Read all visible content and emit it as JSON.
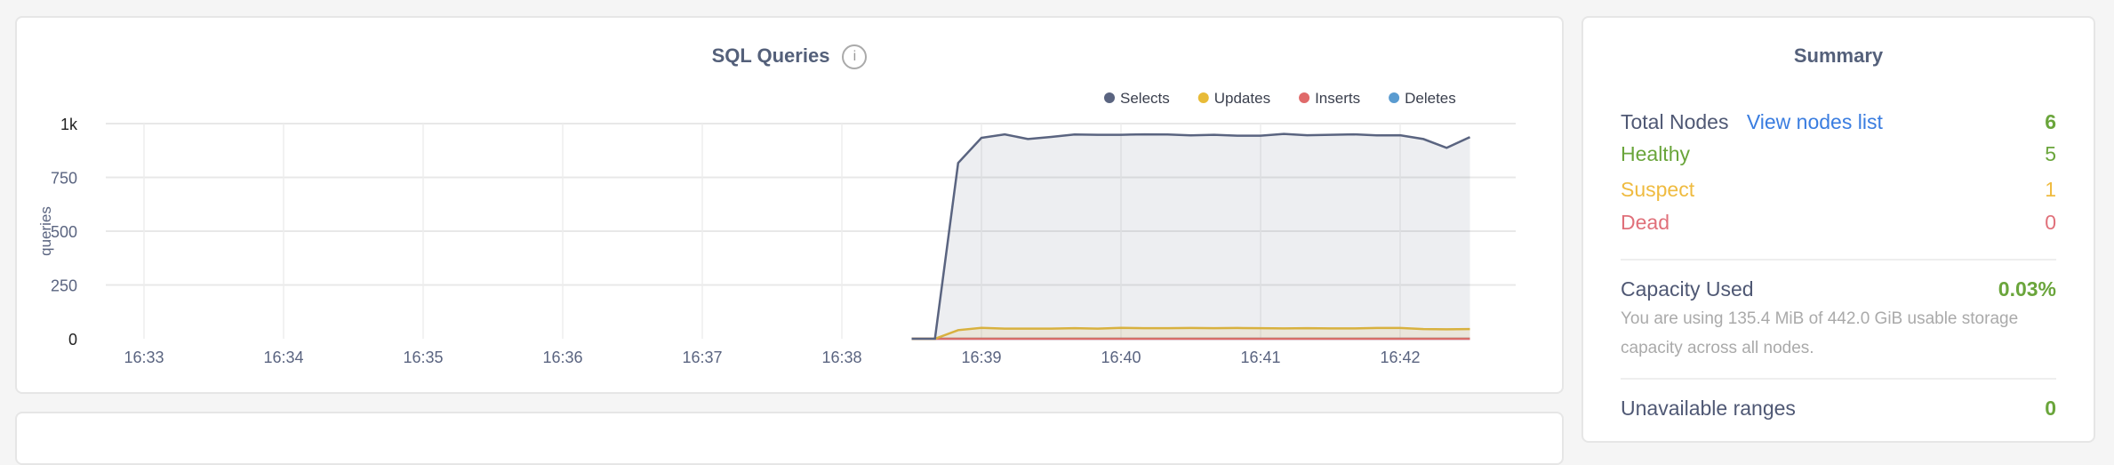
{
  "chart_data": {
    "type": "area",
    "title": "SQL Queries",
    "info_icon": "info-circle-icon",
    "ylabel": "queries",
    "xlabel": "",
    "ylim": [
      0,
      1000
    ],
    "yticks": [
      "0",
      "250",
      "500",
      "750",
      "1k"
    ],
    "ytick_values": [
      0,
      250,
      500,
      750,
      1000
    ],
    "xticks": [
      "16:33",
      "16:34",
      "16:35",
      "16:36",
      "16:37",
      "16:38",
      "16:39",
      "16:40",
      "16:41",
      "16:42"
    ],
    "xlim": [
      "16:32:50",
      "16:43:40"
    ],
    "grid": true,
    "legend_position": "top-right",
    "x": [
      "16:38:30",
      "16:38:40",
      "16:38:50",
      "16:39:00",
      "16:39:10",
      "16:39:20",
      "16:39:30",
      "16:39:40",
      "16:39:50",
      "16:40:00",
      "16:40:10",
      "16:40:20",
      "16:40:30",
      "16:40:40",
      "16:40:50",
      "16:41:00",
      "16:41:10",
      "16:41:20",
      "16:41:30",
      "16:41:40",
      "16:41:50",
      "16:42:00",
      "16:42:10",
      "16:42:20",
      "16:42:30"
    ],
    "series": [
      {
        "name": "Selects",
        "color": "#5a6480",
        "values": [
          0,
          0,
          817,
          934,
          950,
          928,
          938,
          949,
          948,
          948,
          950,
          949,
          945,
          948,
          944,
          944,
          952,
          946,
          948,
          950,
          945,
          946,
          928,
          887,
          937
        ]
      },
      {
        "name": "Updates",
        "color": "#e8bb38",
        "values": [
          0,
          0,
          40,
          51,
          47,
          47,
          47,
          49,
          47,
          51,
          49,
          49,
          50,
          49,
          50,
          49,
          48,
          49,
          48,
          48,
          50,
          50,
          45,
          44,
          45
        ]
      },
      {
        "name": "Inserts",
        "color": "#e06a6a",
        "values": [
          0,
          0,
          0,
          0,
          0,
          0,
          0,
          0,
          0,
          0,
          0,
          0,
          0,
          0,
          0,
          0,
          0,
          0,
          0,
          0,
          0,
          0,
          0,
          0,
          0
        ]
      },
      {
        "name": "Deletes",
        "color": "#5a9bd0",
        "values": [
          0,
          0,
          0,
          0,
          0,
          0,
          0,
          0,
          0,
          0,
          0,
          0,
          0,
          0,
          0,
          0,
          0,
          0,
          0,
          0,
          0,
          0,
          0,
          0,
          0
        ]
      }
    ]
  },
  "summary": {
    "title": "Summary",
    "total_nodes_label": "Total Nodes",
    "view_nodes_link": "View nodes list",
    "total_nodes": "6",
    "healthy_label": "Healthy",
    "healthy": "5",
    "suspect_label": "Suspect",
    "suspect": "1",
    "dead_label": "Dead",
    "dead": "0",
    "capacity_label": "Capacity Used",
    "capacity_value": "0.03%",
    "capacity_desc": "You are using 135.4 MiB of 442.0 GiB usable storage capacity across all nodes.",
    "unavailable_label": "Unavailable ranges",
    "unavailable": "0",
    "colors": {
      "green": "#6aa53b",
      "yellow": "#efbb40",
      "red": "#e0707a",
      "link": "#3a7de0"
    }
  }
}
